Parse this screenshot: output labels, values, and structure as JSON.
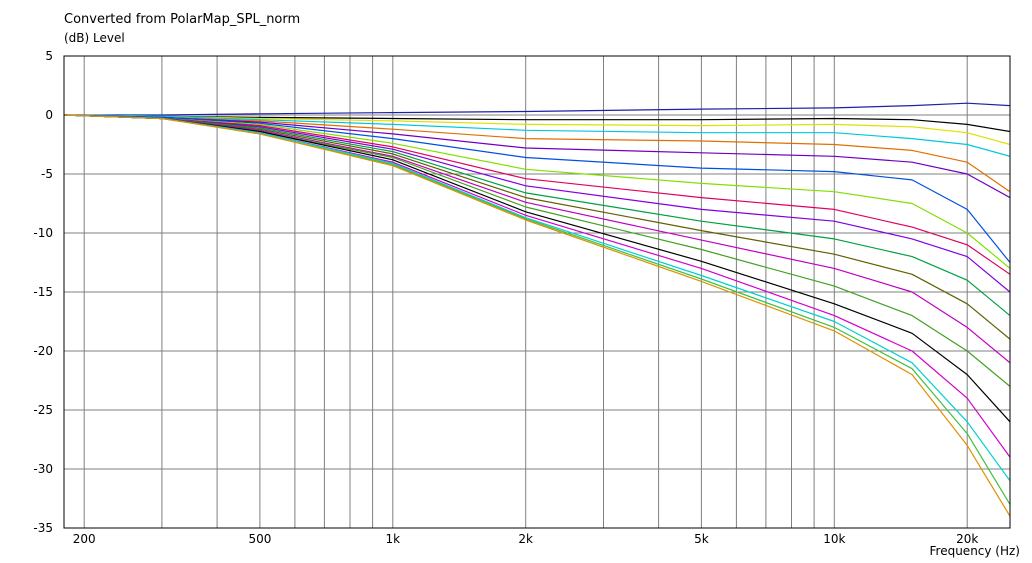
{
  "chart_data": {
    "type": "line",
    "title": "Converted from PolarMap_SPL_norm",
    "ylabel": "(dB)  Level",
    "xlabel": "Frequency  (Hz)",
    "xscale": "log",
    "xlim": [
      180,
      25000
    ],
    "ylim": [
      -35,
      5
    ],
    "grid": true,
    "legend": "none",
    "x_ticks": [
      {
        "value": 200,
        "label": "200"
      },
      {
        "value": 500,
        "label": "500"
      },
      {
        "value": 1000,
        "label": "1k"
      },
      {
        "value": 2000,
        "label": "2k"
      },
      {
        "value": 5000,
        "label": "5k"
      },
      {
        "value": 10000,
        "label": "10k"
      },
      {
        "value": 20000,
        "label": "20k"
      }
    ],
    "y_ticks": [
      {
        "value": 5,
        "label": "5"
      },
      {
        "value": 0,
        "label": "0"
      },
      {
        "value": -5,
        "label": "-5"
      },
      {
        "value": -10,
        "label": "-10"
      },
      {
        "value": -15,
        "label": "-15"
      },
      {
        "value": -20,
        "label": "-20"
      },
      {
        "value": -25,
        "label": "-25"
      },
      {
        "value": -30,
        "label": "-30"
      },
      {
        "value": -35,
        "label": "-35"
      }
    ],
    "x": [
      180,
      300,
      500,
      1000,
      2000,
      5000,
      10000,
      15000,
      20000,
      25000
    ],
    "series": [
      {
        "color": "#1f1fa8",
        "values": [
          0,
          0,
          0.1,
          0.2,
          0.3,
          0.5,
          0.6,
          0.8,
          1.0,
          0.8
        ]
      },
      {
        "color": "#000000",
        "values": [
          0,
          -0.1,
          -0.2,
          -0.3,
          -0.4,
          -0.4,
          -0.3,
          -0.4,
          -0.8,
          -1.4
        ]
      },
      {
        "color": "#e0e000",
        "values": [
          0,
          -0.1,
          -0.3,
          -0.5,
          -0.8,
          -0.9,
          -0.8,
          -1.0,
          -1.5,
          -2.5
        ]
      },
      {
        "color": "#00c8e0",
        "values": [
          0,
          -0.1,
          -0.4,
          -0.8,
          -1.3,
          -1.5,
          -1.5,
          -2.0,
          -2.5,
          -3.5
        ]
      },
      {
        "color": "#e07000",
        "values": [
          0,
          -0.2,
          -0.5,
          -1.2,
          -2.0,
          -2.2,
          -2.5,
          -3.0,
          -4.0,
          -6.5
        ]
      },
      {
        "color": "#7000c0",
        "values": [
          0,
          -0.2,
          -0.6,
          -1.6,
          -2.8,
          -3.2,
          -3.5,
          -4.0,
          -5.0,
          -7.0
        ]
      },
      {
        "color": "#0050e0",
        "values": [
          0,
          -0.2,
          -0.7,
          -2.0,
          -3.6,
          -4.5,
          -4.8,
          -5.5,
          -8.0,
          -12.5
        ]
      },
      {
        "color": "#80e000",
        "values": [
          0,
          -0.3,
          -0.8,
          -2.4,
          -4.6,
          -5.8,
          -6.5,
          -7.5,
          -10.0,
          -13.0
        ]
      },
      {
        "color": "#e00060",
        "values": [
          0,
          -0.3,
          -0.9,
          -2.7,
          -5.4,
          -7.0,
          -8.0,
          -9.5,
          -11.0,
          -13.5
        ]
      },
      {
        "color": "#8000e0",
        "values": [
          0,
          -0.3,
          -1.0,
          -2.9,
          -6.0,
          -8.0,
          -9.0,
          -10.5,
          -12.0,
          -15.0
        ]
      },
      {
        "color": "#00a040",
        "values": [
          0,
          -0.3,
          -1.1,
          -3.1,
          -6.6,
          -9.0,
          -10.5,
          -12.0,
          -14.0,
          -17.0
        ]
      },
      {
        "color": "#606000",
        "values": [
          0,
          -0.3,
          -1.2,
          -3.3,
          -7.0,
          -9.8,
          -11.8,
          -13.5,
          -16.0,
          -19.0
        ]
      },
      {
        "color": "#c000c0",
        "values": [
          0,
          -0.3,
          -1.3,
          -3.5,
          -7.4,
          -10.6,
          -13.0,
          -15.0,
          -18.0,
          -21.0
        ]
      },
      {
        "color": "#40a020",
        "values": [
          0,
          -0.3,
          -1.4,
          -3.6,
          -7.8,
          -11.4,
          -14.5,
          -17.0,
          -20.0,
          -23.0
        ]
      },
      {
        "color": "#000000",
        "values": [
          0,
          -0.3,
          -1.4,
          -3.8,
          -8.2,
          -12.4,
          -16.0,
          -18.5,
          -22.0,
          -26.0
        ]
      },
      {
        "color": "#d000d0",
        "values": [
          0,
          -0.3,
          -1.5,
          -4.0,
          -8.5,
          -13.0,
          -17.0,
          -20.0,
          -24.0,
          -29.0
        ]
      },
      {
        "color": "#00d0d0",
        "values": [
          0,
          -0.3,
          -1.5,
          -4.1,
          -8.7,
          -13.6,
          -17.5,
          -21.0,
          -26.0,
          -31.0
        ]
      },
      {
        "color": "#40c040",
        "values": [
          0,
          -0.3,
          -1.6,
          -4.2,
          -8.8,
          -13.9,
          -18.0,
          -21.5,
          -27.0,
          -33.0
        ]
      },
      {
        "color": "#e09000",
        "values": [
          0,
          -0.3,
          -1.6,
          -4.3,
          -8.9,
          -14.1,
          -18.3,
          -22.0,
          -28.0,
          -34.0
        ]
      }
    ]
  }
}
